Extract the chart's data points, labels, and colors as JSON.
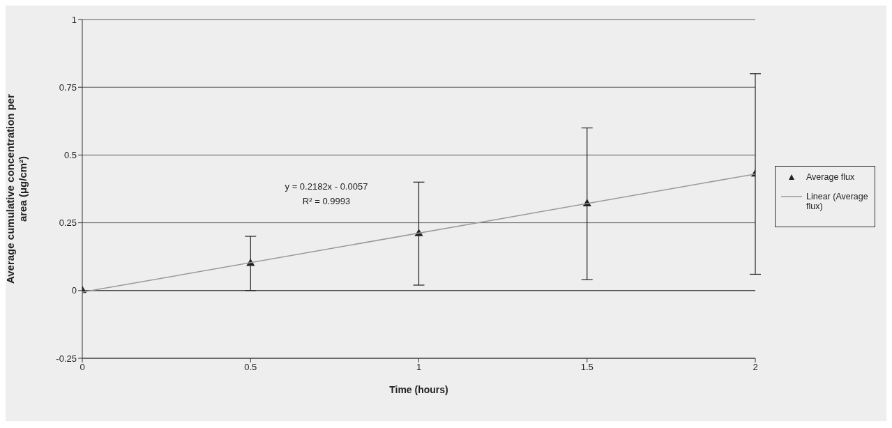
{
  "chart_data": {
    "type": "scatter",
    "xlabel": "Time (hours)",
    "ylabel": "Average cumulative concentration per area (μg/cm²)",
    "xlim": [
      0,
      2
    ],
    "xticks": [
      0,
      0.5,
      1,
      1.5,
      2
    ],
    "ylim": [
      -0.25,
      1
    ],
    "yticks": [
      -0.25,
      0,
      0.25,
      0.5,
      0.75,
      1
    ],
    "grid": "y",
    "legend": "right",
    "series": [
      {
        "name": "Average flux",
        "marker": "triangle",
        "color": "#222222",
        "x": [
          0,
          0.5,
          1,
          1.5,
          2
        ],
        "values": [
          0,
          0.1,
          0.21,
          0.32,
          0.43
        ],
        "errors": [
          null,
          0.1,
          0.19,
          0.28,
          0.37
        ]
      },
      {
        "name": "Linear (Average flux)",
        "type": "line",
        "marker": "none",
        "color": "#999999",
        "x": [
          0,
          2
        ],
        "values": [
          -0.006,
          0.43
        ]
      }
    ],
    "annotations": [
      "y = 0.2182x - 0.0057",
      "R² = 0.9993"
    ]
  }
}
